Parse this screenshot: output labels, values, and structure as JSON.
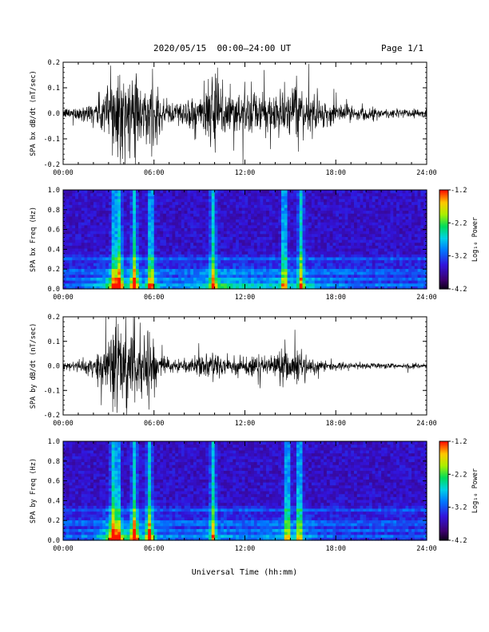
{
  "header": {
    "title": "2020/05/15  00:00–24:00 UT",
    "page": "Page 1/1"
  },
  "chart_data": [
    {
      "type": "line",
      "ylabel": "SPA bx dB/dt (nT/sec)",
      "ylim": [
        -0.2,
        0.2
      ],
      "yticks": [
        "0.2",
        "0.1",
        "0.0",
        "-0.1",
        "-0.2"
      ],
      "xlim": [
        0,
        24
      ],
      "xticks": [
        "00:00",
        "06:00",
        "12:00",
        "18:00",
        "24:00"
      ],
      "grid": false,
      "series": [
        {
          "values": [
            {
              "x": 0.0,
              "amp": 0.02
            },
            {
              "x": 1.0,
              "amp": 0.03
            },
            {
              "x": 2.0,
              "amp": 0.05
            },
            {
              "x": 2.7,
              "amp": 0.1
            },
            {
              "x": 3.3,
              "amp": 0.22
            },
            {
              "x": 3.8,
              "amp": 0.24
            },
            {
              "x": 4.2,
              "amp": 0.1
            },
            {
              "x": 4.7,
              "amp": 0.24
            },
            {
              "x": 5.2,
              "amp": 0.08
            },
            {
              "x": 5.8,
              "amp": 0.14
            },
            {
              "x": 6.5,
              "amp": 0.06
            },
            {
              "x": 7.5,
              "amp": 0.05
            },
            {
              "x": 8.5,
              "amp": 0.07
            },
            {
              "x": 9.5,
              "amp": 0.1
            },
            {
              "x": 10.0,
              "amp": 0.16
            },
            {
              "x": 11.0,
              "amp": 0.12
            },
            {
              "x": 12.0,
              "amp": 0.1
            },
            {
              "x": 13.0,
              "amp": 0.08
            },
            {
              "x": 14.0,
              "amp": 0.1
            },
            {
              "x": 15.0,
              "amp": 0.09
            },
            {
              "x": 16.0,
              "amp": 0.1
            },
            {
              "x": 17.0,
              "amp": 0.06
            },
            {
              "x": 18.0,
              "amp": 0.04
            },
            {
              "x": 20.0,
              "amp": 0.025
            },
            {
              "x": 22.0,
              "amp": 0.02
            },
            {
              "x": 24.0,
              "amp": 0.02
            }
          ]
        }
      ]
    },
    {
      "type": "heatmap",
      "ylabel": "SPA bx Freq (Hz)",
      "ylim": [
        0.0,
        1.0
      ],
      "yticks": [
        "1.0",
        "0.8",
        "0.6",
        "0.4",
        "0.2",
        "0.0"
      ],
      "xlim": [
        0,
        24
      ],
      "xticks": [
        "00:00",
        "06:00",
        "12:00",
        "18:00",
        "24:00"
      ],
      "colorbar": {
        "label": "Log₁₀ Power",
        "range": [
          -4.2,
          -1.2
        ],
        "ticks": [
          "-1.2",
          "-2.2",
          "-3.2",
          "-4.2"
        ]
      },
      "events_x": [
        3.4,
        3.7,
        4.7,
        5.8,
        9.9,
        14.6,
        15.7
      ],
      "bands_hz": [
        0.05,
        0.1,
        0.15,
        0.2,
        0.3
      ]
    },
    {
      "type": "line",
      "ylabel": "SPA by dB/dt (nT/sec)",
      "ylim": [
        -0.2,
        0.2
      ],
      "yticks": [
        "0.2",
        "0.1",
        "0.0",
        "-0.1",
        "-0.2"
      ],
      "xlim": [
        0,
        24
      ],
      "xticks": [
        "00:00",
        "06:00",
        "12:00",
        "18:00",
        "24:00"
      ],
      "grid": false,
      "series": [
        {
          "values": [
            {
              "x": 0.0,
              "amp": 0.02
            },
            {
              "x": 1.0,
              "amp": 0.025
            },
            {
              "x": 2.0,
              "amp": 0.04
            },
            {
              "x": 2.7,
              "amp": 0.12
            },
            {
              "x": 3.2,
              "amp": 0.24
            },
            {
              "x": 3.7,
              "amp": 0.24
            },
            {
              "x": 4.2,
              "amp": 0.12
            },
            {
              "x": 4.7,
              "amp": 0.24
            },
            {
              "x": 5.2,
              "amp": 0.1
            },
            {
              "x": 5.7,
              "amp": 0.16
            },
            {
              "x": 6.3,
              "amp": 0.05
            },
            {
              "x": 7.5,
              "amp": 0.03
            },
            {
              "x": 8.5,
              "amp": 0.03
            },
            {
              "x": 9.5,
              "amp": 0.05
            },
            {
              "x": 10.0,
              "amp": 0.06
            },
            {
              "x": 11.0,
              "amp": 0.05
            },
            {
              "x": 12.0,
              "amp": 0.04
            },
            {
              "x": 13.0,
              "amp": 0.05
            },
            {
              "x": 14.0,
              "amp": 0.06
            },
            {
              "x": 15.5,
              "amp": 0.08
            },
            {
              "x": 16.0,
              "amp": 0.06
            },
            {
              "x": 17.0,
              "amp": 0.02
            },
            {
              "x": 18.0,
              "amp": 0.015
            },
            {
              "x": 20.0,
              "amp": 0.012
            },
            {
              "x": 22.0,
              "amp": 0.012
            },
            {
              "x": 24.0,
              "amp": 0.012
            }
          ]
        }
      ]
    },
    {
      "type": "heatmap",
      "ylabel": "SPA by Freq (Hz)",
      "ylim": [
        0.0,
        1.0
      ],
      "yticks": [
        "1.0",
        "0.8",
        "0.6",
        "0.4",
        "0.2",
        "0.0"
      ],
      "xlim": [
        0,
        24
      ],
      "xticks": [
        "00:00",
        "06:00",
        "12:00",
        "18:00",
        "24:00"
      ],
      "colorbar": {
        "label": "Log₁₀ Power",
        "range": [
          -4.2,
          -1.2
        ],
        "ticks": [
          "-1.2",
          "-2.2",
          "-3.2",
          "-4.2"
        ]
      },
      "events_x": [
        3.3,
        3.6,
        4.7,
        5.7,
        9.9,
        14.8,
        15.6
      ],
      "bands_hz": [
        0.05,
        0.1,
        0.15,
        0.2,
        0.3
      ]
    }
  ],
  "xlabel": "Universal Time (hh:mm)"
}
